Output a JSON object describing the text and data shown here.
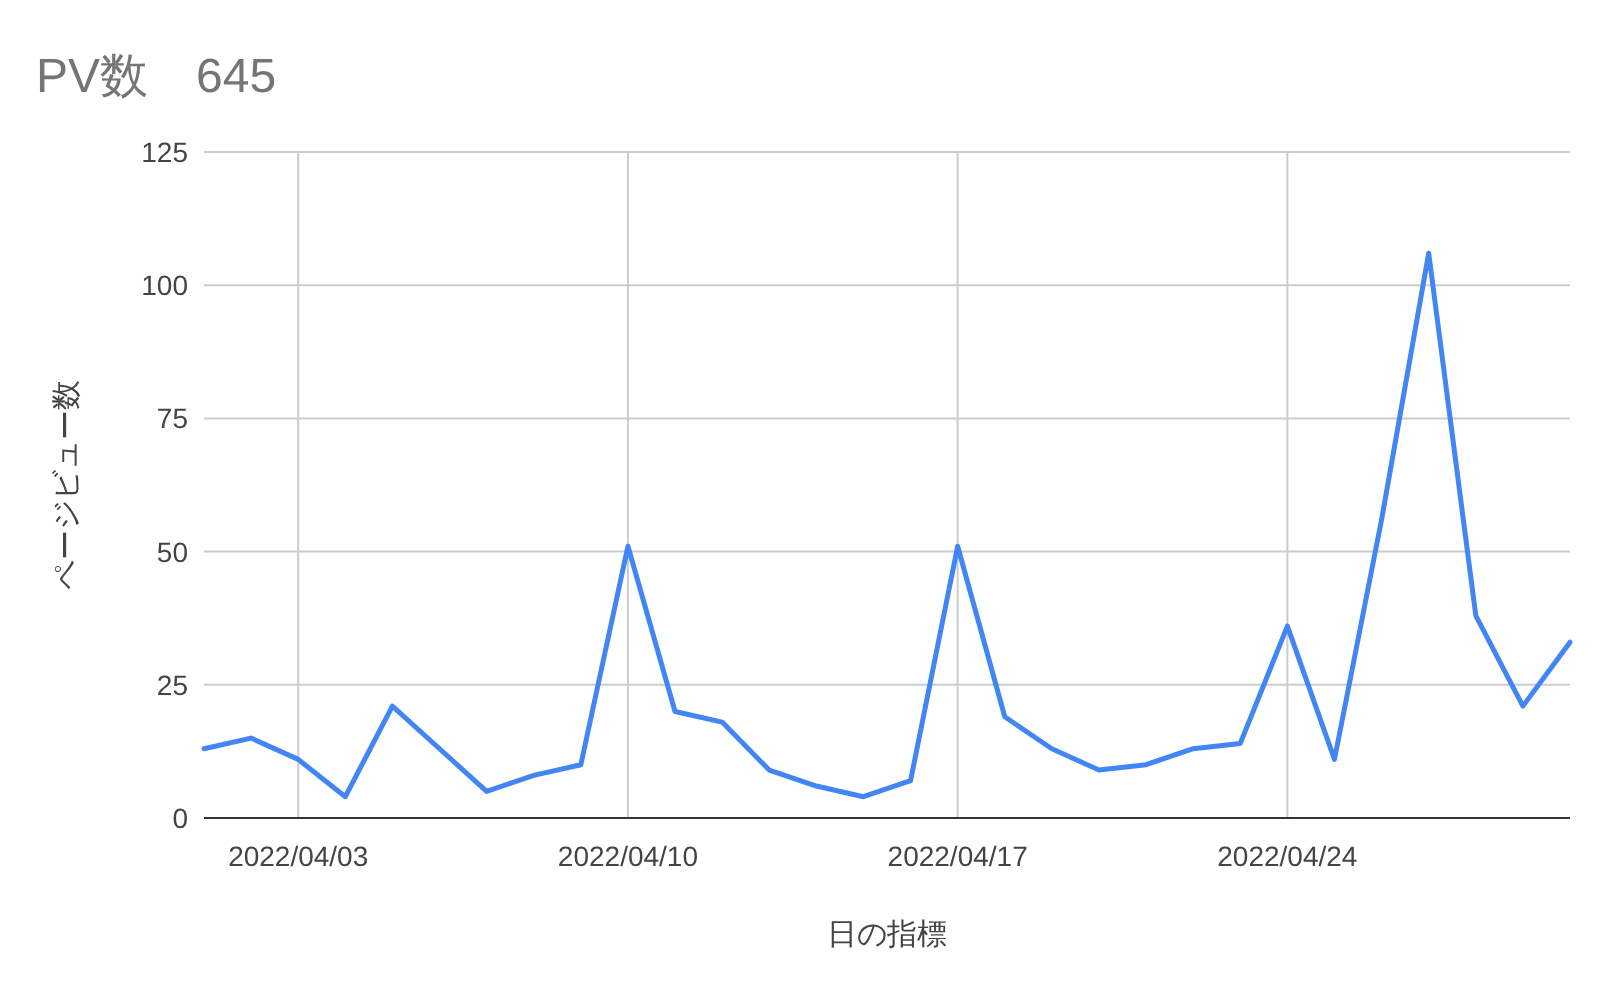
{
  "chart_data": {
    "type": "line",
    "title": "PV数　645",
    "xlabel": "日の指標",
    "ylabel": "ページビュー数",
    "x": [
      "2022-04-01",
      "2022-04-02",
      "2022-04-03",
      "2022-04-04",
      "2022-04-05",
      "2022-04-06",
      "2022-04-07",
      "2022-04-08",
      "2022-04-09",
      "2022-04-10",
      "2022-04-11",
      "2022-04-12",
      "2022-04-13",
      "2022-04-14",
      "2022-04-15",
      "2022-04-16",
      "2022-04-17",
      "2022-04-18",
      "2022-04-19",
      "2022-04-20",
      "2022-04-21",
      "2022-04-22",
      "2022-04-23",
      "2022-04-24",
      "2022-04-25",
      "2022-04-26",
      "2022-04-27",
      "2022-04-28",
      "2022-04-29",
      "2022-04-30"
    ],
    "series": [
      {
        "color": "#4285f4",
        "values": [
          13,
          15,
          11,
          4,
          21,
          13,
          5,
          8,
          10,
          51,
          20,
          18,
          9,
          6,
          4,
          7,
          51,
          19,
          13,
          9,
          10,
          13,
          14,
          36,
          11,
          56,
          106,
          38,
          21,
          33
        ]
      }
    ],
    "xlim": [
      "2022-04-01",
      "2022-04-30"
    ],
    "xticks": [
      {
        "value": "2022-04-03",
        "label": "2022/04/03"
      },
      {
        "value": "2022-04-10",
        "label": "2022/04/10"
      },
      {
        "value": "2022-04-17",
        "label": "2022/04/17"
      },
      {
        "value": "2022-04-24",
        "label": "2022/04/24"
      }
    ],
    "ylim": [
      0,
      125
    ],
    "yticks": [
      0,
      25,
      50,
      75,
      100,
      125
    ],
    "grid": true,
    "marker": "none",
    "line_style": "solid"
  }
}
